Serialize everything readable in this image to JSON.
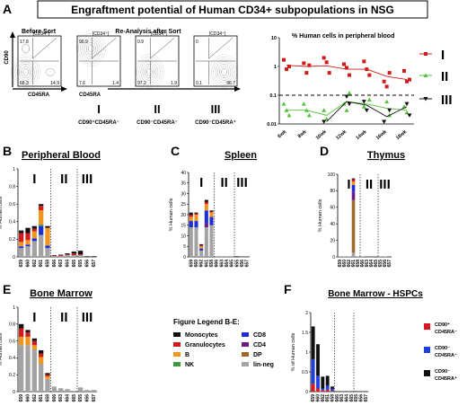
{
  "figure": {
    "title": "Engraftment potential of Human CD34+ subpopulations in NSG",
    "panel_letters": [
      "A",
      "B",
      "C",
      "D",
      "E",
      "F"
    ]
  },
  "flow_panel": {
    "before_sort_label": "Before Sort",
    "reanalysis_label": "Re-Analysis after Sort",
    "gate_label": "[CD34⁺]",
    "y_axis": "CD90",
    "x_axis": "CD45RA",
    "plots": [
      {
        "top_left": "17.8",
        "bottom_left": "66.3",
        "bottom_right": "14.9"
      },
      {
        "top_left": "90.9",
        "bottom_left": "7.6",
        "bottom_right": "1.4"
      },
      {
        "top_left": "0.9",
        "bottom_left": "97.2",
        "bottom_right": "1.9"
      },
      {
        "top_left": "0",
        "bottom_left": "0.1",
        "bottom_right": "96.7"
      }
    ],
    "populations": [
      {
        "numeral": "I",
        "label": "CD90⁺CD45RA⁻"
      },
      {
        "numeral": "II",
        "label": "CD90⁻CD45RA⁻"
      },
      {
        "numeral": "III",
        "label": "CD90⁻CD45RA⁺"
      }
    ]
  },
  "legend_be": {
    "title": "Figure Legend B-E:",
    "items": [
      {
        "label": "Monocytes",
        "color": "#111111"
      },
      {
        "label": "Granulocytes",
        "color": "#d11a1a"
      },
      {
        "label": "B",
        "color": "#f0961e"
      },
      {
        "label": "NK",
        "color": "#3e9a3e"
      },
      {
        "label": "CD8",
        "color": "#1c2fd6"
      },
      {
        "label": "CD4",
        "color": "#6a1a8a"
      },
      {
        "label": "DP",
        "color": "#9c6a2a"
      },
      {
        "label": "lin-neg",
        "color": "#a3a3a3"
      }
    ]
  },
  "legend_f": {
    "items": [
      {
        "label_top": "CD90⁺",
        "label_bottom": "CD45RA⁻",
        "color": "#e0161e"
      },
      {
        "label_top": "CD90⁻",
        "label_bottom": "CD45RA⁻",
        "color": "#1e3fe0"
      },
      {
        "label_top": "CD90⁻",
        "label_bottom": "CD45RA⁺",
        "color": "#111111"
      }
    ]
  },
  "chart_data": [
    {
      "id": "A-right",
      "type": "scatter",
      "title": "% Human cells in peripheral blood",
      "categories": [
        "6wk",
        "8wk",
        "10wk",
        "12wk",
        "14wk",
        "16wk",
        "18wk"
      ],
      "yscale": "log",
      "ylim": [
        0.01,
        10
      ],
      "yticks": [
        "10",
        "1",
        "0.1",
        "0.01"
      ],
      "threshold": 0.1,
      "series": [
        {
          "name": "I",
          "color": "#d11a1a",
          "marker": "square",
          "points": [
            [
              0,
              1.7
            ],
            [
              0,
              0.8
            ],
            [
              0,
              1.0
            ],
            [
              1,
              1.3
            ],
            [
              1,
              0.6
            ],
            [
              1,
              1.1
            ],
            [
              2,
              2.0
            ],
            [
              2,
              1.4
            ],
            [
              2,
              0.6
            ],
            [
              3,
              1.2
            ],
            [
              3,
              0.9
            ],
            [
              3,
              0.5
            ],
            [
              4,
              1.5
            ],
            [
              4,
              0.8
            ],
            [
              4,
              0.5
            ],
            [
              5,
              0.3
            ],
            [
              5,
              0.2
            ],
            [
              5,
              0.6
            ],
            [
              6,
              0.7
            ],
            [
              6,
              0.3
            ],
            [
              6,
              0.35
            ]
          ],
          "mean": [
            1.1,
            1.0,
            1.05,
            0.8,
            0.8,
            0.45,
            0.35
          ]
        },
        {
          "name": "II",
          "color": "#55c23c",
          "marker": "triangle-up",
          "points": [
            [
              0,
              0.05
            ],
            [
              0,
              0.03
            ],
            [
              0,
              0.02
            ],
            [
              1,
              0.05
            ],
            [
              1,
              0.03
            ],
            [
              1,
              0.02
            ],
            [
              2,
              0.03
            ],
            [
              2,
              0.015
            ],
            [
              3,
              0.12
            ],
            [
              3,
              0.05
            ],
            [
              3,
              0.03
            ],
            [
              4,
              0.07
            ],
            [
              4,
              0.04
            ],
            [
              5,
              0.06
            ],
            [
              5,
              0.02
            ],
            [
              6,
              0.04
            ],
            [
              6,
              0.025
            ]
          ],
          "mean": [
            0.03,
            0.03,
            0.02,
            0.06,
            0.05,
            0.035,
            0.03
          ]
        },
        {
          "name": "III",
          "color": "#111111",
          "marker": "triangle-down",
          "points": [
            [
              2,
              0.012
            ],
            [
              3,
              0.09
            ],
            [
              3,
              0.05
            ],
            [
              4,
              0.06
            ],
            [
              4,
              0.03
            ],
            [
              5,
              0.03
            ],
            [
              5,
              0.012
            ],
            [
              6,
              0.05
            ],
            [
              6,
              0.02
            ]
          ],
          "mean": [
            null,
            null,
            0.012,
            0.06,
            0.045,
            0.018,
            0.04
          ]
        }
      ]
    },
    {
      "id": "B",
      "type": "bar",
      "title": "Peripheral Blood",
      "ylabel": "% Human cells",
      "ylim": [
        0,
        1
      ],
      "yticks": [
        "0",
        "0.2",
        "0.4",
        "0.6",
        "0.8",
        "1"
      ],
      "groups": [
        "I",
        "II",
        "III"
      ],
      "categories": [
        "659",
        "660",
        "662",
        "661",
        "658",
        "666",
        "663",
        "664",
        "665",
        "655",
        "656",
        "657"
      ],
      "group_breaks": [
        5,
        9
      ],
      "stack_order": [
        "lin-neg",
        "DP",
        "CD4",
        "CD8",
        "NK",
        "B",
        "Granulocytes",
        "Monocytes"
      ],
      "stacks": [
        [
          0.1,
          0,
          0,
          0.02,
          0,
          0.05,
          0.1,
          0.03
        ],
        [
          0.12,
          0,
          0,
          0.02,
          0,
          0.05,
          0.08,
          0.06
        ],
        [
          0.18,
          0,
          0,
          0.03,
          0,
          0.08,
          0.03,
          0.03
        ],
        [
          0.25,
          0,
          0,
          0.1,
          0.02,
          0.16,
          0.05,
          0.02
        ],
        [
          0.1,
          0,
          0,
          0.03,
          0,
          0.2,
          0,
          0.02
        ],
        [
          0.01,
          0,
          0,
          0,
          0,
          0,
          0.005,
          0.005
        ],
        [
          0.01,
          0,
          0,
          0,
          0,
          0,
          0.01,
          0.005
        ],
        [
          0.02,
          0,
          0,
          0,
          0,
          0,
          0.01,
          0.01
        ],
        [
          0.02,
          0,
          0,
          0,
          0,
          0,
          0.02,
          0.02
        ],
        [
          0.02,
          0,
          0,
          0,
          0,
          0,
          0.01,
          0.04
        ],
        [
          0.005,
          0,
          0,
          0,
          0,
          0,
          0,
          0.005
        ],
        [
          0.005,
          0,
          0,
          0,
          0,
          0,
          0,
          0.005
        ]
      ]
    },
    {
      "id": "C",
      "type": "bar",
      "title": "Spleen",
      "ylabel": "% Human cells",
      "ylim": [
        0,
        40
      ],
      "yticks": [
        "0",
        "5",
        "10",
        "15",
        "20",
        "25",
        "30",
        "35",
        "40"
      ],
      "groups": [
        "I",
        "II",
        "III"
      ],
      "categories": [
        "659",
        "660",
        "662",
        "661",
        "658",
        "666",
        "663",
        "664",
        "665",
        "655",
        "656",
        "657"
      ],
      "group_breaks": [
        5,
        9
      ],
      "stack_order": [
        "lin-neg",
        "DP",
        "CD4",
        "CD8",
        "NK",
        "B",
        "Granulocytes",
        "Monocytes"
      ],
      "stacks": [
        [
          14,
          0,
          0,
          3,
          0,
          2,
          1,
          1
        ],
        [
          14,
          0,
          0,
          3,
          0,
          3,
          0.5,
          0.5
        ],
        [
          3,
          0,
          0,
          1,
          0,
          1,
          0.5,
          0.5
        ],
        [
          14,
          0,
          2,
          6,
          0,
          3,
          1,
          1
        ],
        [
          15,
          0,
          0,
          4,
          0,
          2,
          0.5,
          0.5
        ],
        [
          0.1,
          0,
          0,
          0,
          0,
          0,
          0,
          0
        ],
        [
          0.1,
          0,
          0,
          0,
          0,
          0,
          0,
          0
        ],
        [
          0.1,
          0,
          0,
          0,
          0,
          0,
          0,
          0
        ],
        [
          0.1,
          0,
          0,
          0,
          0,
          0,
          0,
          0
        ],
        [
          0.2,
          0,
          0,
          0,
          0,
          0,
          0,
          0.2
        ],
        [
          0.1,
          0,
          0,
          0,
          0,
          0,
          0,
          0.1
        ],
        [
          0.1,
          0,
          0,
          0,
          0,
          0,
          0,
          0.1
        ]
      ]
    },
    {
      "id": "D",
      "type": "bar",
      "title": "Thymus",
      "ylabel": "% Human cells",
      "ylim": [
        0,
        100
      ],
      "yticks": [
        "0",
        "20",
        "40",
        "60",
        "80",
        "100"
      ],
      "groups": [
        "I",
        "II",
        "III"
      ],
      "categories": [
        "659",
        "660",
        "662",
        "661",
        "658",
        "666",
        "663",
        "664",
        "665",
        "655",
        "656",
        "657"
      ],
      "group_breaks": [
        5,
        9
      ],
      "stack_order": [
        "lin-neg",
        "DP",
        "CD4",
        "CD8",
        "NK",
        "B",
        "Granulocytes",
        "Monocytes"
      ],
      "stacks": [
        [
          0.5,
          0,
          0,
          0,
          0,
          0,
          0,
          0
        ],
        [
          0.5,
          0,
          0,
          0,
          0,
          0,
          0,
          0
        ],
        [
          0.5,
          0,
          0,
          0,
          0,
          0,
          0,
          0
        ],
        [
          5,
          64,
          10,
          8,
          0,
          4,
          3,
          1
        ],
        [
          0.5,
          0,
          0,
          0,
          0,
          0,
          0,
          0
        ],
        [
          0.5,
          0,
          0,
          0,
          0,
          0,
          0,
          0
        ],
        [
          0,
          0,
          0,
          0,
          0,
          0,
          0,
          0
        ],
        [
          0,
          0,
          0,
          0,
          0,
          0,
          0,
          0
        ],
        [
          0,
          0,
          0,
          0,
          0,
          0,
          0,
          0
        ],
        [
          0.5,
          0,
          0,
          0,
          0,
          0,
          0,
          0
        ],
        [
          0.5,
          0,
          0,
          0,
          0,
          0,
          0,
          0
        ],
        [
          0,
          0,
          0,
          0,
          0,
          0,
          0,
          0
        ]
      ]
    },
    {
      "id": "E",
      "type": "bar",
      "title": "Bone Marrow",
      "ylabel": "% Human cells",
      "ylim": [
        0,
        1
      ],
      "yticks": [
        "0",
        "0.2",
        "0.4",
        "0.6",
        "0.8",
        "1"
      ],
      "groups": [
        "I",
        "II",
        "III"
      ],
      "categories": [
        "659",
        "660",
        "662",
        "661",
        "658",
        "666",
        "663",
        "664",
        "665",
        "655",
        "656",
        "657"
      ],
      "group_breaks": [
        5,
        9
      ],
      "stack_order": [
        "lin-neg",
        "DP",
        "CD4",
        "CD8",
        "NK",
        "B",
        "Granulocytes",
        "Monocytes"
      ],
      "stacks": [
        [
          0.55,
          0,
          0,
          0,
          0,
          0.1,
          0.1,
          0.05
        ],
        [
          0.55,
          0,
          0,
          0,
          0,
          0.1,
          0.05,
          0.03
        ],
        [
          0.5,
          0,
          0,
          0,
          0,
          0.05,
          0.05,
          0.03
        ],
        [
          0.33,
          0,
          0,
          0,
          0,
          0.08,
          0.04,
          0.04
        ],
        [
          0.15,
          0,
          0,
          0,
          0,
          0.03,
          0.02,
          0.02
        ],
        [
          0.06,
          0,
          0,
          0,
          0,
          0,
          0,
          0
        ],
        [
          0.04,
          0,
          0,
          0,
          0,
          0,
          0,
          0
        ],
        [
          0.03,
          0,
          0,
          0,
          0,
          0,
          0,
          0
        ],
        [
          0.01,
          0,
          0,
          0,
          0,
          0,
          0,
          0
        ],
        [
          0.05,
          0,
          0,
          0,
          0,
          0,
          0,
          0
        ],
        [
          0.02,
          0,
          0,
          0,
          0,
          0,
          0,
          0
        ],
        [
          0.02,
          0,
          0,
          0,
          0,
          0,
          0,
          0
        ]
      ]
    },
    {
      "id": "F",
      "type": "bar",
      "title": "Bone Marrow - HSPCs",
      "ylabel": "% of Human cells",
      "ylim": [
        0,
        2
      ],
      "yticks": [
        "0",
        "0.5",
        "1",
        "1.5",
        "2"
      ],
      "categories": [
        "659",
        "660",
        "662",
        "661",
        "658",
        "666",
        "663",
        "664",
        "665",
        "655",
        "656",
        "657"
      ],
      "group_breaks": [
        5,
        9
      ],
      "stack_order": [
        "CD90+CD45RA-",
        "CD90-CD45RA-",
        "CD90-CD45RA+"
      ],
      "stacks": [
        [
          0.2,
          0.62,
          0.83
        ],
        [
          0.08,
          0.32,
          0.8
        ],
        [
          0.03,
          0.05,
          0.3
        ],
        [
          0.05,
          0.1,
          0.25
        ],
        [
          0.02,
          0.05,
          0.06
        ],
        [
          0,
          0,
          0.01
        ],
        [
          0,
          0,
          0.01
        ],
        [
          0,
          0,
          0.01
        ],
        [
          0,
          0,
          0.01
        ],
        [
          0,
          0,
          0.01
        ],
        [
          0,
          0,
          0.01
        ],
        [
          0,
          0,
          0.01
        ]
      ]
    }
  ]
}
